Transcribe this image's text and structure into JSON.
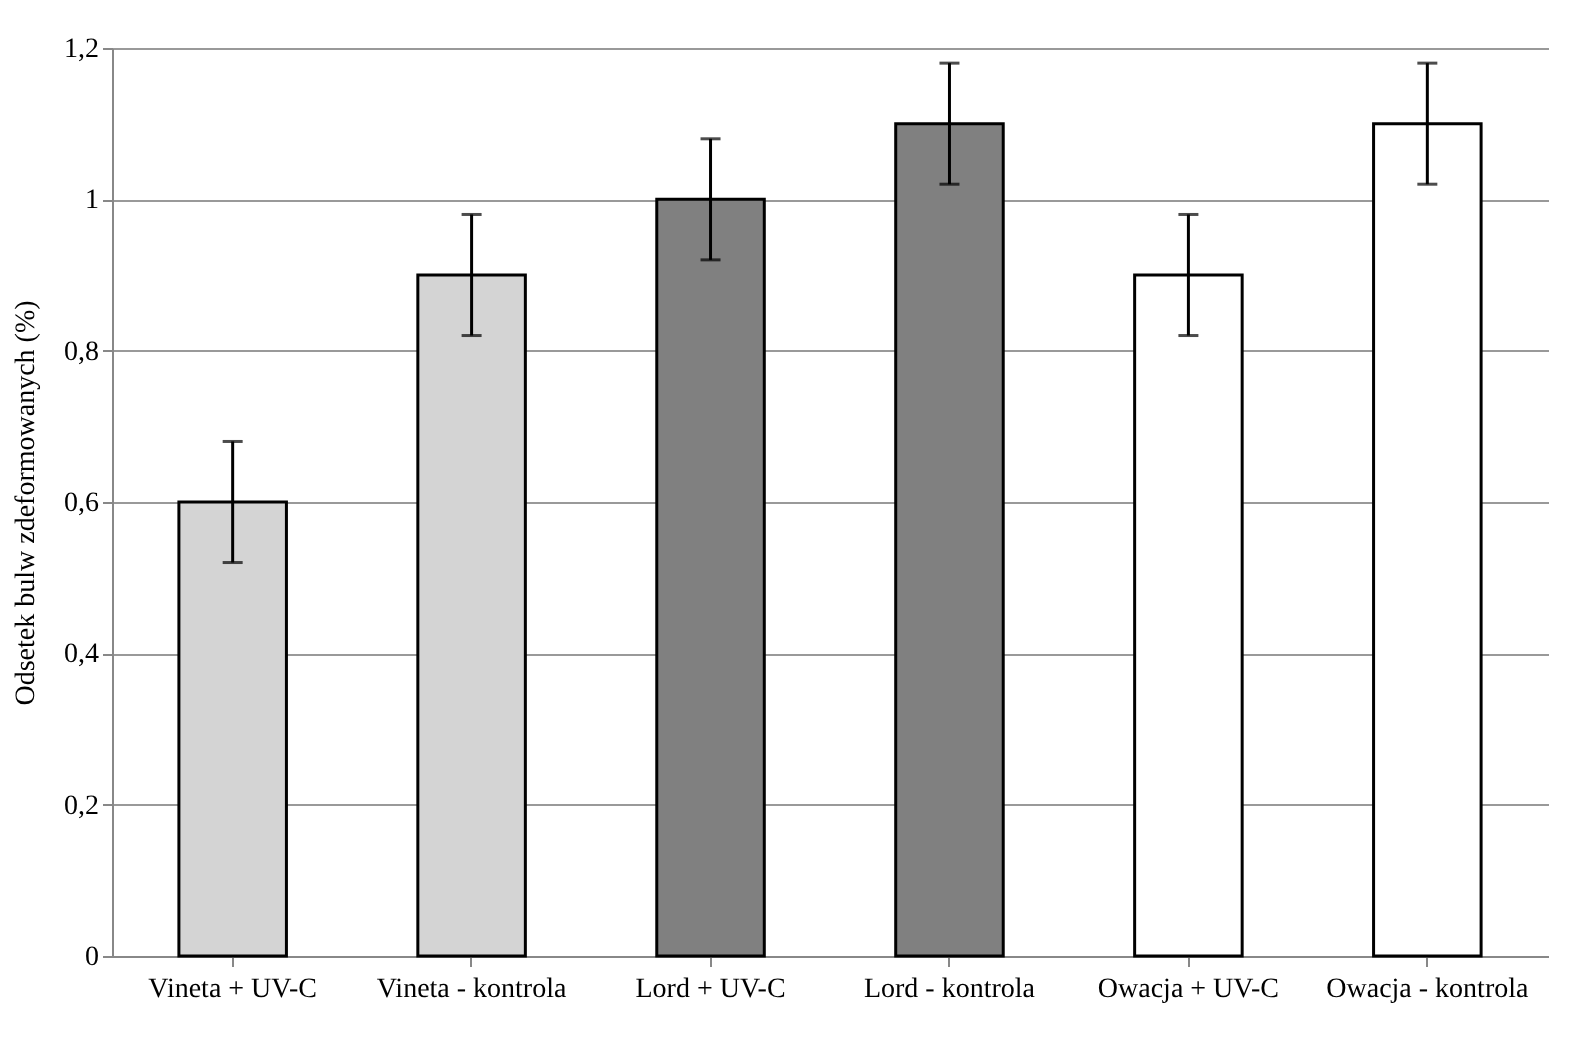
{
  "chart_data": {
    "type": "bar",
    "ylabel": "Odsetek bulw zdeformowanych (%)",
    "categories": [
      "Vineta + UV-C",
      "Vineta -\nkontrola",
      "Lord + UV-C",
      "Lord - kontrola",
      "Owacja + UV-C",
      "Owacja -\nkontrola"
    ],
    "values": [
      0.6,
      0.9,
      1.0,
      1.1,
      0.9,
      1.1
    ],
    "colors": [
      "#d4d4d4",
      "#d4d4d4",
      "#808080",
      "#808080",
      "#ffffff",
      "#ffffff"
    ],
    "errors": [
      0.08,
      0.08,
      0.08,
      0.08,
      0.08,
      0.08
    ],
    "ylim": [
      0,
      1.2
    ],
    "yticks": [
      {
        "value": 0,
        "label": "0"
      },
      {
        "value": 0.2,
        "label": "0,2"
      },
      {
        "value": 0.4,
        "label": "0,4"
      },
      {
        "value": 0.6,
        "label": "0,6"
      },
      {
        "value": 0.8,
        "label": "0,8"
      },
      {
        "value": 1,
        "label": "1"
      },
      {
        "value": 1.2,
        "label": "1,2"
      }
    ],
    "grid": "y"
  }
}
